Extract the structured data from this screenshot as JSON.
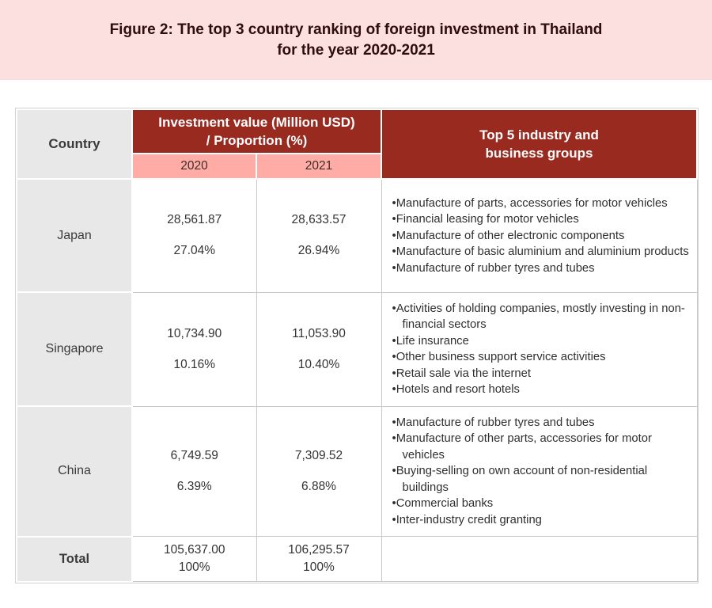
{
  "colors": {
    "banner_pink": "#fce0df",
    "title_text": "#2e0d0c",
    "header_red": "#992a20",
    "header_red_text": "#ffffff",
    "subheader_pink": "#ffaca6",
    "country_column_gray": "#e8e8e8",
    "cell_border_gray": "#c8c8c8",
    "body_text": "#333333"
  },
  "banner": {
    "title_line1": "Figure 2: The top 3 country ranking of foreign investment in Thailand",
    "title_line2": "for the year 2020-2021"
  },
  "table": {
    "header": {
      "country": "Country",
      "investment_line1": "Investment value (Million USD)",
      "investment_line2": "/ Proportion (%)",
      "industry_line1": "Top 5 industry and",
      "industry_line2": "business groups",
      "year_2020": "2020",
      "year_2021": "2021"
    },
    "rows": [
      {
        "country": "Japan",
        "v2020": "28,561.87",
        "p2020": "27.04%",
        "v2021": "28,633.57",
        "p2021": "26.94%",
        "industries": [
          "Manufacture of parts, accessories for motor vehicles",
          "Financial leasing for motor vehicles",
          "Manufacture of other electronic components",
          "Manufacture of basic aluminium and aluminium products",
          "Manufacture of rubber tyres and tubes"
        ]
      },
      {
        "country": "Singapore",
        "v2020": "10,734.90",
        "p2020": "10.16%",
        "v2021": "11,053.90",
        "p2021": "10.40%",
        "industries": [
          "Activities of holding companies, mostly investing in non-financial sectors",
          "Life insurance",
          "Other business support service activities",
          "Retail sale via the internet",
          "Hotels and resort hotels"
        ]
      },
      {
        "country": "China",
        "v2020": "6,749.59",
        "p2020": "6.39%",
        "v2021": "7,309.52",
        "p2021": "6.88%",
        "industries": [
          "Manufacture of rubber tyres and tubes",
          "Manufacture of other parts, accessories for motor vehicles",
          "Buying-selling on own account of non-residential buildings",
          "Commercial banks",
          "Inter-industry credit granting"
        ]
      }
    ],
    "total": {
      "label": "Total",
      "v2020": "105,637.00",
      "p2020": "100%",
      "v2021": "106,295.57",
      "p2021": "100%"
    }
  },
  "chart_data": {
    "type": "table",
    "title": "Figure 2: The top 3 country ranking of foreign investment in Thailand for the year 2020-2021",
    "columns": [
      "Country",
      "Investment value (Million USD) / Proportion (%) 2020",
      "Investment value (Million USD) / Proportion (%) 2021",
      "Top 5 industry and business groups"
    ],
    "rows": [
      {
        "country": "Japan",
        "investment_2020_million_usd": 28561.87,
        "proportion_2020_pct": 27.04,
        "investment_2021_million_usd": 28633.57,
        "proportion_2021_pct": 26.94,
        "top_industries": [
          "Manufacture of parts, accessories for motor vehicles",
          "Financial leasing for motor vehicles",
          "Manufacture of other electronic components",
          "Manufacture of basic aluminium and aluminium products",
          "Manufacture of rubber tyres and tubes"
        ]
      },
      {
        "country": "Singapore",
        "investment_2020_million_usd": 10734.9,
        "proportion_2020_pct": 10.16,
        "investment_2021_million_usd": 11053.9,
        "proportion_2021_pct": 10.4,
        "top_industries": [
          "Activities of holding companies, mostly investing in non-financial sectors",
          "Life insurance",
          "Other business support service activities",
          "Retail sale via the internet",
          "Hotels and resort hotels"
        ]
      },
      {
        "country": "China",
        "investment_2020_million_usd": 6749.59,
        "proportion_2020_pct": 6.39,
        "investment_2021_million_usd": 7309.52,
        "proportion_2021_pct": 6.88,
        "top_industries": [
          "Manufacture of rubber tyres and tubes",
          "Manufacture of other parts, accessories for motor vehicles",
          "Buying-selling on own account of non-residential buildings",
          "Commercial banks",
          "Inter-industry credit granting"
        ]
      },
      {
        "country": "Total",
        "investment_2020_million_usd": 105637.0,
        "proportion_2020_pct": 100,
        "investment_2021_million_usd": 106295.57,
        "proportion_2021_pct": 100,
        "top_industries": []
      }
    ]
  }
}
